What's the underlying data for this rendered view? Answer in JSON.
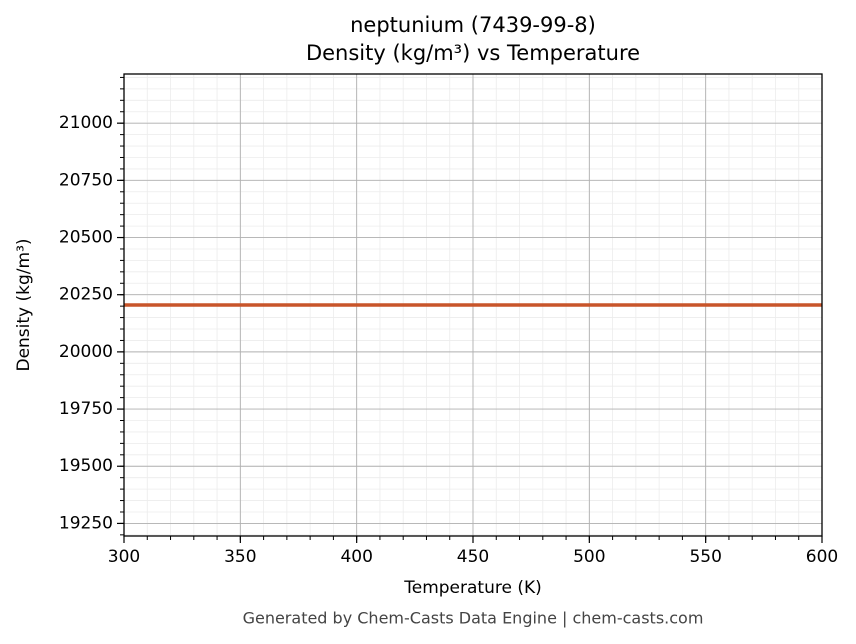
{
  "chart_data": {
    "type": "line",
    "title": [
      "neptunium (7439-99-8)",
      "Density (kg/m³) vs Temperature"
    ],
    "x_label": "Temperature (K)",
    "y_label": "Density (kg/m³)",
    "x": [
      300,
      600
    ],
    "series": [
      {
        "name": "Density",
        "color": "#c8552a",
        "values": [
          20205,
          20205
        ]
      }
    ],
    "xlim": [
      300,
      600
    ],
    "xticks": [
      300,
      350,
      400,
      450,
      500,
      550,
      600
    ],
    "ylim": [
      19195,
      21215
    ],
    "yticks": [
      19250,
      19500,
      19750,
      20000,
      20250,
      20500,
      20750,
      21000
    ],
    "grid": true,
    "minor_grid": true,
    "footer": "Generated by Chem-Casts Data Engine | chem-casts.com"
  }
}
